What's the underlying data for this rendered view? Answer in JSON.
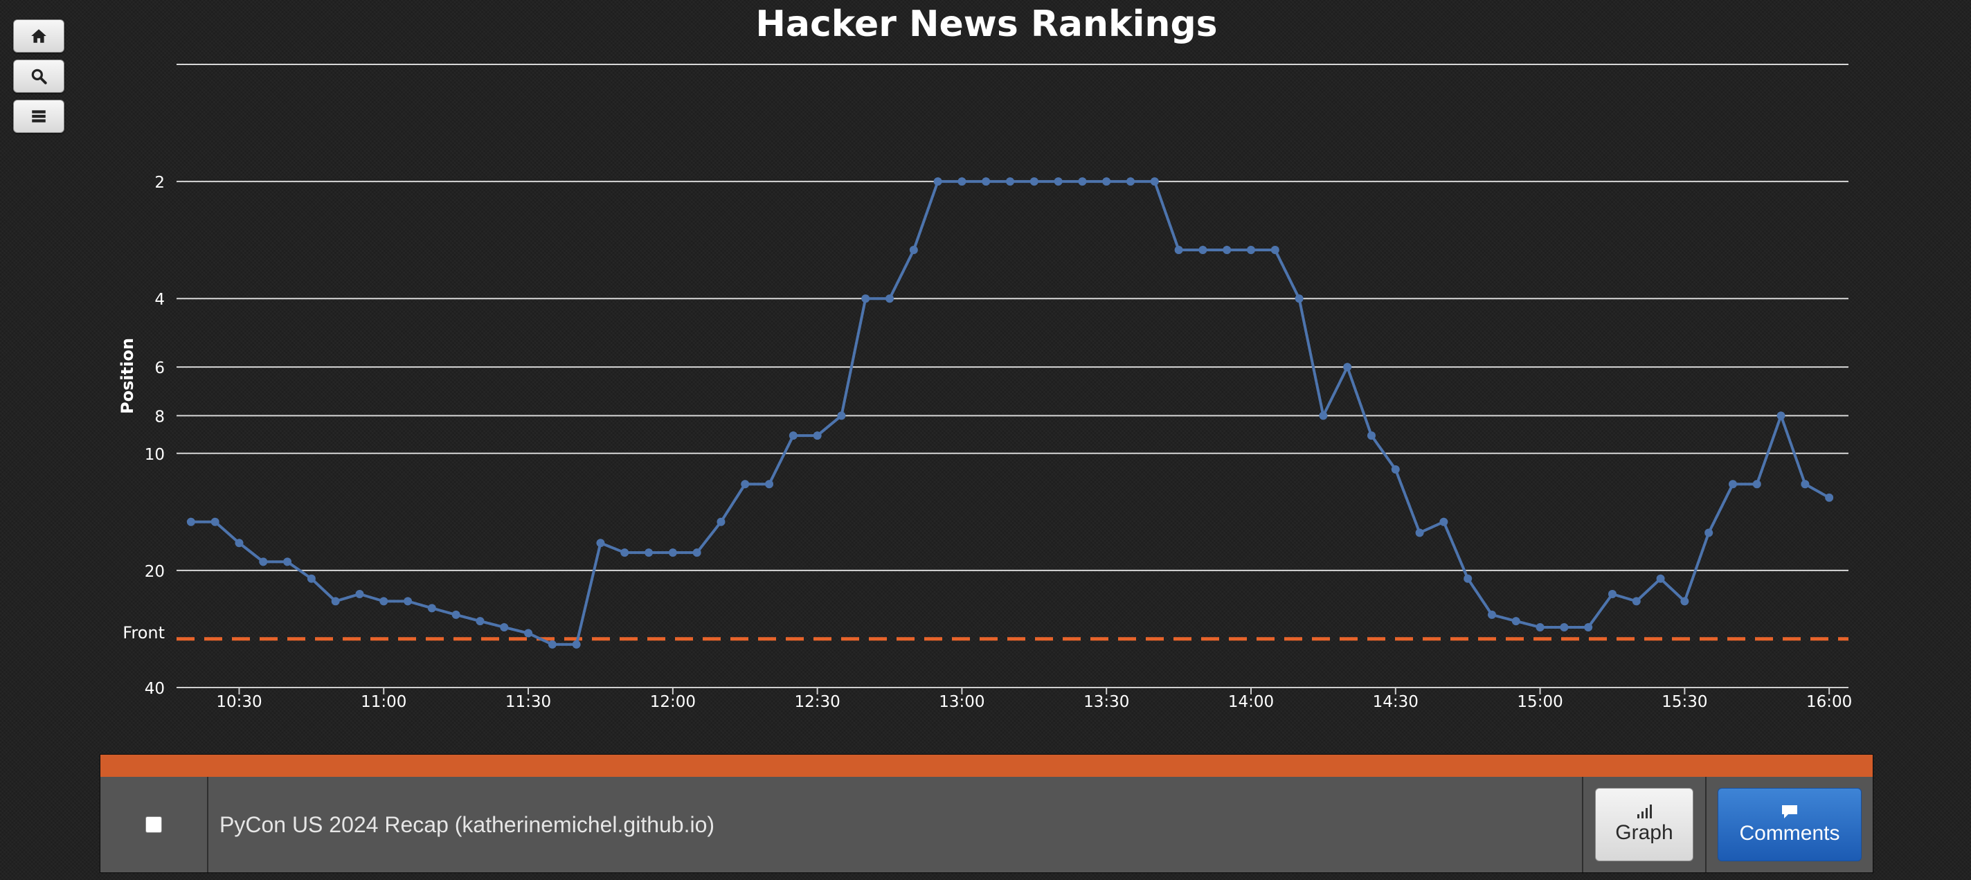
{
  "toolbar": {
    "home_icon": "home-icon",
    "search_icon": "search-icon",
    "list_icon": "list-icon"
  },
  "chart_data": {
    "type": "line",
    "title": "Hacker News Rankings",
    "ylabel": "Position",
    "xlabel": "",
    "y_scale": "log",
    "y_reversed": true,
    "ylim": [
      40,
      1
    ],
    "y_ticks": [
      2,
      4,
      6,
      8,
      10,
      20,
      40
    ],
    "x_ticks": [
      "10:30",
      "11:00",
      "11:30",
      "12:00",
      "12:30",
      "13:00",
      "13:30",
      "14:00",
      "14:30",
      "15:00",
      "15:30",
      "16:00"
    ],
    "x_range_minutes": [
      617,
      964
    ],
    "front_line": {
      "label": "Front",
      "value": 30,
      "color": "#e8642b"
    },
    "line_color": "#4d74ad",
    "series": [
      {
        "name": "PyCon US 2024 Recap (katherinemichel.github.io)",
        "x": [
          620,
          625,
          630,
          635,
          640,
          645,
          650,
          655,
          660,
          665,
          670,
          675,
          680,
          685,
          690,
          695,
          700,
          705,
          710,
          715,
          720,
          725,
          730,
          735,
          740,
          745,
          750,
          755,
          760,
          765,
          770,
          775,
          780,
          785,
          790,
          795,
          800,
          805,
          810,
          815,
          820,
          825,
          830,
          835,
          840,
          845,
          850,
          855,
          860,
          865,
          870,
          875,
          880,
          885,
          890,
          895,
          900,
          905,
          910,
          915,
          920,
          925,
          930,
          935,
          940,
          945,
          950,
          955,
          960
        ],
        "values": [
          15,
          15,
          17,
          19,
          19,
          21,
          24,
          23,
          24,
          24,
          25,
          26,
          27,
          28,
          29,
          31,
          31,
          17,
          18,
          18,
          18,
          18,
          15,
          12,
          12,
          9,
          9,
          8,
          4,
          4,
          3,
          2,
          2,
          2,
          2,
          2,
          2,
          2,
          2,
          2,
          2,
          3,
          3,
          3,
          3,
          3,
          4,
          8,
          6,
          9,
          11,
          16,
          15,
          21,
          26,
          27,
          28,
          28,
          28,
          23,
          24,
          21,
          24,
          16,
          12,
          12,
          8,
          12,
          13
        ]
      }
    ]
  },
  "story": {
    "title": "PyCon US 2024 Recap (katherinemichel.github.io)",
    "graph_label": "Graph",
    "comments_label": "Comments"
  }
}
